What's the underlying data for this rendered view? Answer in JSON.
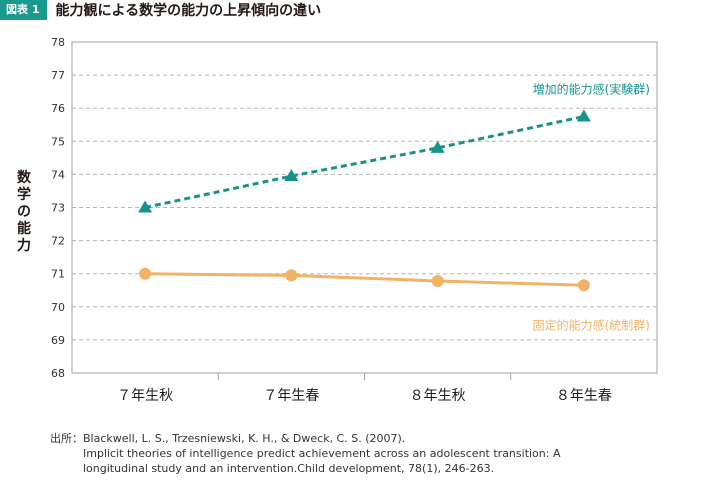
{
  "header": {
    "tag": "図表 1",
    "title": "能力観による数学の能力の上昇傾向の違い"
  },
  "source": {
    "label": "出所：",
    "lines": [
      "Blackwell, L. S., Trzesniewski, K. H., & Dweck, C. S. (2007).",
      "Implicit theories of intelligence predict achievement across an adolescent transition: A",
      "longitudinal study and an intervention.Child development, 78(1), 246-263."
    ]
  },
  "chart_data": {
    "type": "line",
    "title": "",
    "xlabel": "",
    "ylabel": "数学の能力",
    "categories": [
      "７年生秋",
      "７年生春",
      "８年生秋",
      "８年生春"
    ],
    "ylim": [
      68,
      78
    ],
    "yticks": [
      68,
      69,
      70,
      71,
      72,
      73,
      74,
      75,
      76,
      77,
      78
    ],
    "grid": true,
    "series": [
      {
        "name": "増加的能力感(実験群)",
        "values": [
          73.0,
          73.95,
          74.8,
          75.75
        ],
        "color": "#17938a",
        "line_style": "dashed",
        "marker": "triangle"
      },
      {
        "name": "固定的能力感(統制群)",
        "values": [
          71.0,
          70.95,
          70.78,
          70.65
        ],
        "color": "#f2b266",
        "line_style": "solid",
        "marker": "circle"
      }
    ]
  }
}
